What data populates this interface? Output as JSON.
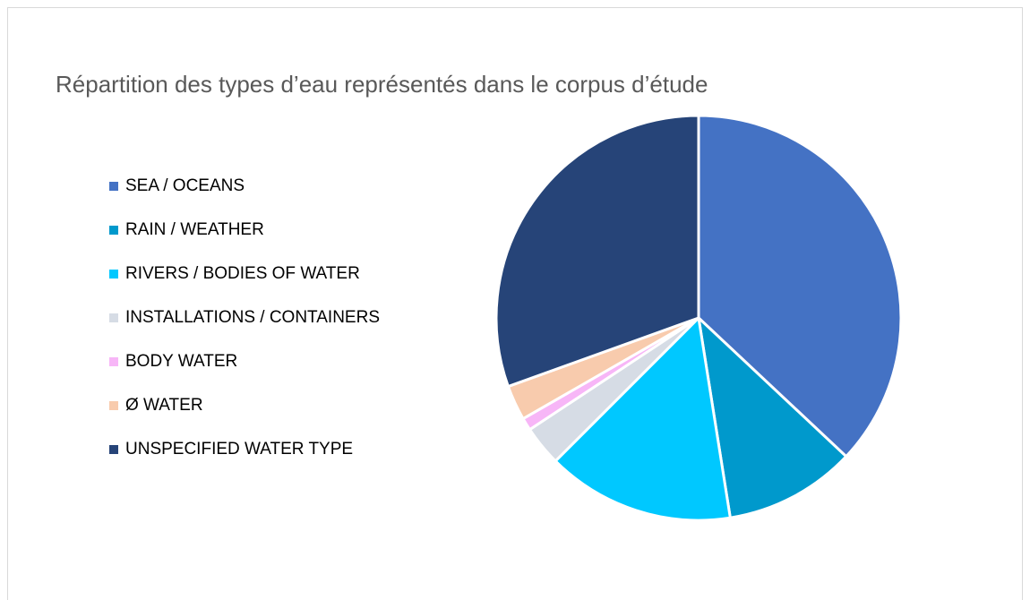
{
  "chart_data": {
    "type": "pie",
    "title": "Répartition des types d’eau représentés dans le corpus d’étude",
    "categories": [
      "SEA / OCEANS",
      "RAIN / WEATHER",
      "RIVERS / BODIES OF WATER",
      "INSTALLATIONS / CONTAINERS",
      "BODY WATER",
      "Ø WATER",
      "UNSPECIFIED WATER TYPE"
    ],
    "values": [
      37,
      10.5,
      15,
      3.2,
      1,
      2.8,
      30.5
    ],
    "colors": [
      "#4472c4",
      "#0099cc",
      "#00c8ff",
      "#d6dce5",
      "#f7b6f7",
      "#f8cbad",
      "#264478"
    ],
    "legend": "left"
  }
}
